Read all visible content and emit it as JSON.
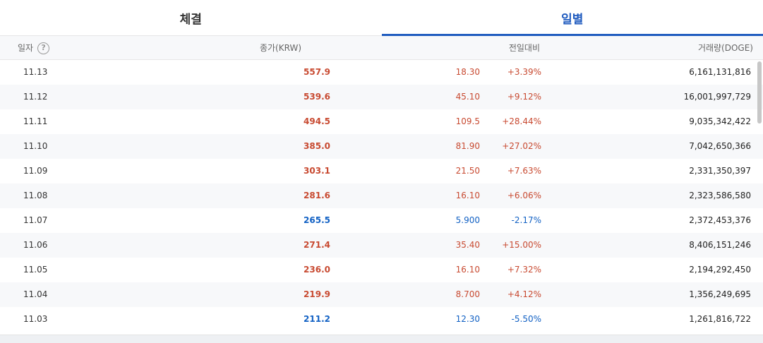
{
  "tabs": [
    {
      "label": "체결",
      "active": false
    },
    {
      "label": "일별",
      "active": true
    }
  ],
  "header": {
    "date": "일자",
    "help": "?",
    "close": "종가(KRW)",
    "change": "전일대비",
    "volume": "거래량(DOGE)"
  },
  "colors": {
    "up": "#c84a31",
    "down": "#1261c4",
    "accent": "#1f5bbf"
  },
  "rows": [
    {
      "date": "11.13",
      "close": "557.9",
      "diff": "18.30",
      "pct": "+3.39%",
      "volume": "6,161,131,816",
      "dir": "up"
    },
    {
      "date": "11.12",
      "close": "539.6",
      "diff": "45.10",
      "pct": "+9.12%",
      "volume": "16,001,997,729",
      "dir": "up"
    },
    {
      "date": "11.11",
      "close": "494.5",
      "diff": "109.5",
      "pct": "+28.44%",
      "volume": "9,035,342,422",
      "dir": "up"
    },
    {
      "date": "11.10",
      "close": "385.0",
      "diff": "81.90",
      "pct": "+27.02%",
      "volume": "7,042,650,366",
      "dir": "up"
    },
    {
      "date": "11.09",
      "close": "303.1",
      "diff": "21.50",
      "pct": "+7.63%",
      "volume": "2,331,350,397",
      "dir": "up"
    },
    {
      "date": "11.08",
      "close": "281.6",
      "diff": "16.10",
      "pct": "+6.06%",
      "volume": "2,323,586,580",
      "dir": "up"
    },
    {
      "date": "11.07",
      "close": "265.5",
      "diff": "5.900",
      "pct": "-2.17%",
      "volume": "2,372,453,376",
      "dir": "down"
    },
    {
      "date": "11.06",
      "close": "271.4",
      "diff": "35.40",
      "pct": "+15.00%",
      "volume": "8,406,151,246",
      "dir": "up"
    },
    {
      "date": "11.05",
      "close": "236.0",
      "diff": "16.10",
      "pct": "+7.32%",
      "volume": "2,194,292,450",
      "dir": "up"
    },
    {
      "date": "11.04",
      "close": "219.9",
      "diff": "8.700",
      "pct": "+4.12%",
      "volume": "1,356,249,695",
      "dir": "up"
    },
    {
      "date": "11.03",
      "close": "211.2",
      "diff": "12.30",
      "pct": "-5.50%",
      "volume": "1,261,816,722",
      "dir": "down"
    }
  ]
}
